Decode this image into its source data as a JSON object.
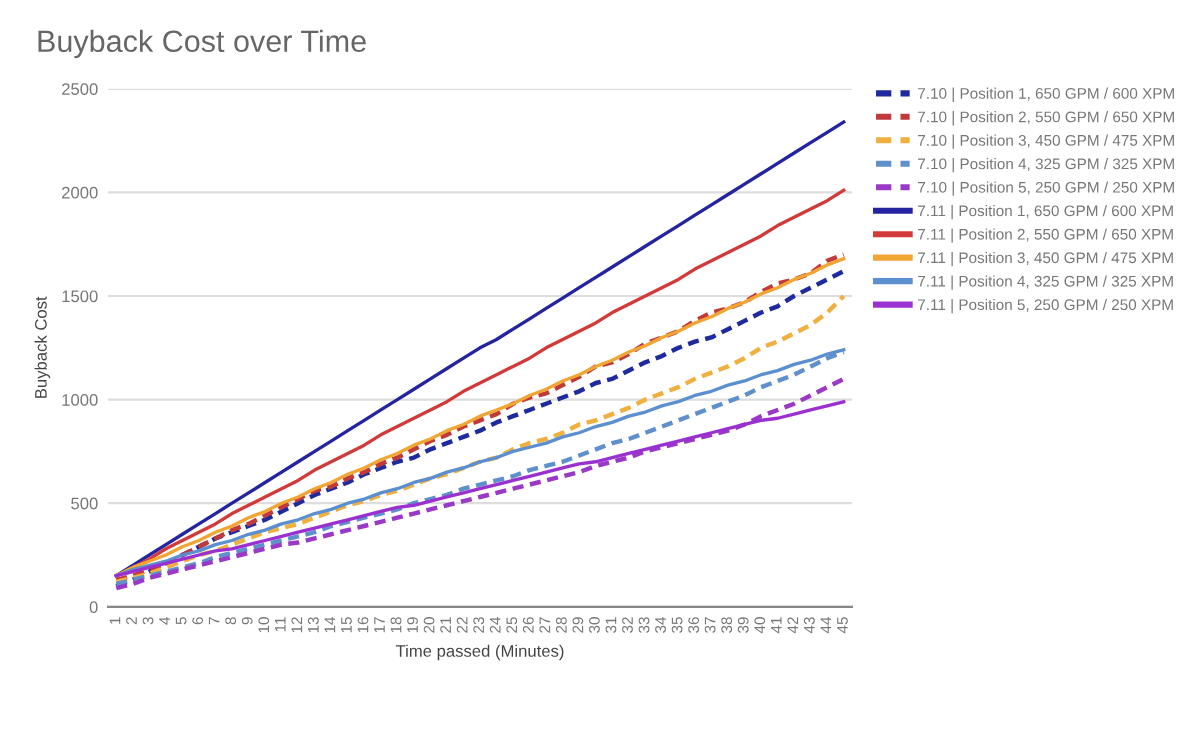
{
  "chart_data": {
    "type": "line",
    "title": "Buyback Cost over Time",
    "xlabel": "Time passed (Minutes)",
    "ylabel": "Buyback Cost",
    "categories": [
      "1",
      "2",
      "3",
      "4",
      "5",
      "6",
      "7",
      "8",
      "9",
      "10",
      "11",
      "12",
      "13",
      "14",
      "15",
      "16",
      "17",
      "18",
      "19",
      "20",
      "21",
      "22",
      "23",
      "24",
      "25",
      "26",
      "27",
      "28",
      "29",
      "30",
      "31",
      "32",
      "33",
      "34",
      "35",
      "36",
      "37",
      "38",
      "39",
      "40",
      "41",
      "42",
      "43",
      "44",
      "45"
    ],
    "ylim": [
      0,
      2500
    ],
    "yticks": [
      0,
      500,
      1000,
      1500,
      2000,
      2500
    ],
    "grid": "y",
    "legend": "right",
    "marker": "none",
    "series": [
      {
        "name": "7.10 | Position 1, 650 GPM / 600 XPM",
        "color": "#1f2a9e",
        "line_style": "dashed",
        "values": [
          100,
          130,
          170,
          210,
          250,
          290,
          330,
          360,
          390,
          420,
          460,
          500,
          540,
          570,
          600,
          640,
          670,
          700,
          720,
          760,
          790,
          820,
          850,
          890,
          920,
          950,
          980,
          1010,
          1040,
          1080,
          1100,
          1140,
          1180,
          1210,
          1250,
          1280,
          1300,
          1340,
          1380,
          1420,
          1450,
          1500,
          1540,
          1580,
          1620
        ]
      },
      {
        "name": "7.10 | Position 2, 550 GPM / 650 XPM",
        "color": "#c0393b",
        "line_style": "dashed",
        "values": [
          130,
          150,
          180,
          210,
          250,
          290,
          330,
          370,
          400,
          440,
          480,
          520,
          560,
          580,
          620,
          650,
          690,
          720,
          760,
          800,
          830,
          870,
          900,
          930,
          980,
          1010,
          1030,
          1070,
          1110,
          1160,
          1180,
          1220,
          1270,
          1300,
          1330,
          1380,
          1420,
          1440,
          1470,
          1520,
          1560,
          1580,
          1610,
          1670,
          1700
        ]
      },
      {
        "name": "7.10 | Position 3, 450 GPM / 475 XPM",
        "color": "#f0b040",
        "line_style": "dashed",
        "values": [
          120,
          140,
          160,
          190,
          220,
          250,
          270,
          300,
          330,
          360,
          380,
          400,
          430,
          460,
          490,
          510,
          540,
          560,
          590,
          620,
          640,
          670,
          700,
          720,
          760,
          790,
          810,
          840,
          880,
          900,
          930,
          960,
          1000,
          1030,
          1060,
          1100,
          1130,
          1160,
          1200,
          1250,
          1280,
          1320,
          1360,
          1420,
          1500
        ]
      },
      {
        "name": "7.10 | Position 4, 325 GPM / 325 XPM",
        "color": "#6090cc",
        "line_style": "dashed",
        "values": [
          110,
          130,
          150,
          170,
          190,
          210,
          240,
          260,
          280,
          300,
          320,
          340,
          360,
          390,
          410,
          430,
          450,
          470,
          500,
          520,
          540,
          570,
          590,
          610,
          630,
          660,
          680,
          700,
          730,
          760,
          790,
          810,
          840,
          870,
          900,
          930,
          960,
          990,
          1020,
          1060,
          1090,
          1120,
          1160,
          1200,
          1230
        ]
      },
      {
        "name": "7.10 | Position 5, 250 GPM / 250 XPM",
        "color": "#9a38c8",
        "line_style": "dashed",
        "values": [
          90,
          110,
          140,
          160,
          180,
          200,
          220,
          240,
          260,
          280,
          300,
          310,
          330,
          350,
          370,
          390,
          410,
          430,
          450,
          470,
          490,
          510,
          530,
          550,
          570,
          590,
          610,
          630,
          650,
          680,
          700,
          720,
          750,
          770,
          790,
          810,
          830,
          850,
          880,
          920,
          950,
          980,
          1020,
          1060,
          1100
        ]
      },
      {
        "name": "7.11 | Position 1, 650 GPM / 600 XPM",
        "color": "#2424a0",
        "line_style": "solid",
        "values": [
          150,
          200,
          250,
          300,
          350,
          400,
          450,
          500,
          550,
          600,
          650,
          700,
          750,
          800,
          850,
          900,
          950,
          1000,
          1050,
          1100,
          1150,
          1200,
          1250,
          1290,
          1340,
          1390,
          1440,
          1490,
          1540,
          1590,
          1640,
          1690,
          1740,
          1790,
          1840,
          1890,
          1940,
          1990,
          2040,
          2090,
          2140,
          2190,
          2240,
          2290,
          2340
        ]
      },
      {
        "name": "7.11 | Position 2, 550 GPM / 650 XPM",
        "color": "#d23a3a",
        "line_style": "solid",
        "values": [
          150,
          190,
          230,
          280,
          320,
          360,
          400,
          450,
          490,
          530,
          570,
          610,
          660,
          700,
          740,
          780,
          830,
          870,
          910,
          950,
          990,
          1040,
          1080,
          1120,
          1160,
          1200,
          1250,
          1290,
          1330,
          1370,
          1420,
          1460,
          1500,
          1540,
          1580,
          1630,
          1670,
          1710,
          1750,
          1790,
          1840,
          1880,
          1920,
          1960,
          2010
        ]
      },
      {
        "name": "7.11 | Position 3, 450 GPM / 475 XPM",
        "color": "#f2a533",
        "line_style": "solid",
        "values": [
          150,
          190,
          220,
          250,
          290,
          320,
          360,
          390,
          430,
          460,
          500,
          530,
          570,
          600,
          640,
          670,
          710,
          740,
          780,
          810,
          850,
          880,
          920,
          950,
          980,
          1020,
          1050,
          1090,
          1120,
          1160,
          1190,
          1230,
          1260,
          1300,
          1330,
          1370,
          1400,
          1440,
          1470,
          1510,
          1540,
          1580,
          1610,
          1650,
          1680
        ]
      },
      {
        "name": "7.11 | Position 4, 325 GPM / 325 XPM",
        "color": "#5b8fd0",
        "line_style": "solid",
        "values": [
          150,
          180,
          200,
          220,
          250,
          270,
          300,
          320,
          350,
          370,
          400,
          420,
          450,
          470,
          500,
          520,
          550,
          570,
          600,
          620,
          650,
          670,
          700,
          720,
          750,
          770,
          790,
          820,
          840,
          870,
          890,
          920,
          940,
          970,
          990,
          1020,
          1040,
          1070,
          1090,
          1120,
          1140,
          1170,
          1190,
          1220,
          1240
        ]
      },
      {
        "name": "7.11 | Position 5, 250 GPM / 250 XPM",
        "color": "#9b30d0",
        "line_style": "solid",
        "values": [
          150,
          170,
          190,
          210,
          230,
          250,
          270,
          280,
          300,
          320,
          340,
          360,
          380,
          400,
          420,
          440,
          460,
          480,
          490,
          510,
          530,
          550,
          570,
          590,
          610,
          630,
          650,
          670,
          690,
          700,
          720,
          740,
          760,
          780,
          800,
          820,
          840,
          860,
          880,
          900,
          910,
          930,
          950,
          970,
          990
        ]
      }
    ]
  }
}
